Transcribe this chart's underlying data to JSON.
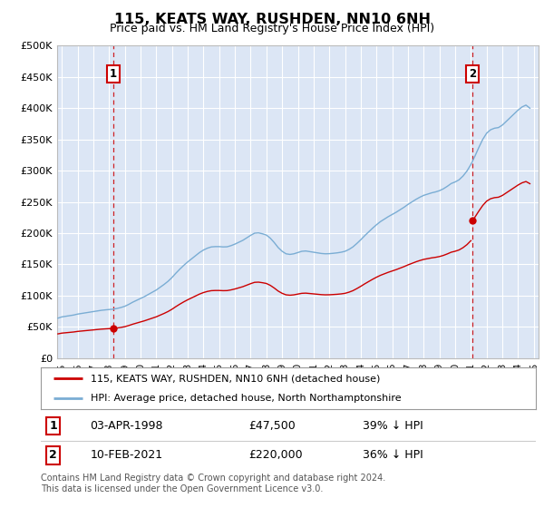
{
  "title": "115, KEATS WAY, RUSHDEN, NN10 6NH",
  "subtitle": "Price paid vs. HM Land Registry's House Price Index (HPI)",
  "ylim": [
    0,
    500000
  ],
  "yticks": [
    0,
    50000,
    100000,
    150000,
    200000,
    250000,
    300000,
    350000,
    400000,
    450000,
    500000
  ],
  "ytick_labels": [
    "£0",
    "£50K",
    "£100K",
    "£150K",
    "£200K",
    "£250K",
    "£300K",
    "£350K",
    "£400K",
    "£450K",
    "£500K"
  ],
  "xlim_start": 1994.7,
  "xlim_end": 2025.3,
  "background_color": "#dce6f5",
  "grid_color": "#ffffff",
  "sale1_year": 1998.25,
  "sale1_price": 47500,
  "sale1_label": "1",
  "sale1_date": "03-APR-1998",
  "sale1_pct": "39% ↓ HPI",
  "sale2_year": 2021.1,
  "sale2_price": 220000,
  "sale2_label": "2",
  "sale2_date": "10-FEB-2021",
  "sale2_pct": "36% ↓ HPI",
  "line1_color": "#cc0000",
  "line2_color": "#7aadd4",
  "vline_color": "#cc0000",
  "marker_box_color": "#cc0000",
  "legend_label1": "115, KEATS WAY, RUSHDEN, NN10 6NH (detached house)",
  "legend_label2": "HPI: Average price, detached house, North Northamptonshire",
  "footer_text": "Contains HM Land Registry data © Crown copyright and database right 2024.\nThis data is licensed under the Open Government Licence v3.0.",
  "hpi_years": [
    1994.75,
    1995.0,
    1995.25,
    1995.5,
    1995.75,
    1996.0,
    1996.25,
    1996.5,
    1996.75,
    1997.0,
    1997.25,
    1997.5,
    1997.75,
    1998.0,
    1998.25,
    1998.5,
    1998.75,
    1999.0,
    1999.25,
    1999.5,
    1999.75,
    2000.0,
    2000.25,
    2000.5,
    2000.75,
    2001.0,
    2001.25,
    2001.5,
    2001.75,
    2002.0,
    2002.25,
    2002.5,
    2002.75,
    2003.0,
    2003.25,
    2003.5,
    2003.75,
    2004.0,
    2004.25,
    2004.5,
    2004.75,
    2005.0,
    2005.25,
    2005.5,
    2005.75,
    2006.0,
    2006.25,
    2006.5,
    2006.75,
    2007.0,
    2007.25,
    2007.5,
    2007.75,
    2008.0,
    2008.25,
    2008.5,
    2008.75,
    2009.0,
    2009.25,
    2009.5,
    2009.75,
    2010.0,
    2010.25,
    2010.5,
    2010.75,
    2011.0,
    2011.25,
    2011.5,
    2011.75,
    2012.0,
    2012.25,
    2012.5,
    2012.75,
    2013.0,
    2013.25,
    2013.5,
    2013.75,
    2014.0,
    2014.25,
    2014.5,
    2014.75,
    2015.0,
    2015.25,
    2015.5,
    2015.75,
    2016.0,
    2016.25,
    2016.5,
    2016.75,
    2017.0,
    2017.25,
    2017.5,
    2017.75,
    2018.0,
    2018.25,
    2018.5,
    2018.75,
    2019.0,
    2019.25,
    2019.5,
    2019.75,
    2020.0,
    2020.25,
    2020.5,
    2020.75,
    2021.0,
    2021.25,
    2021.5,
    2021.75,
    2022.0,
    2022.25,
    2022.5,
    2022.75,
    2023.0,
    2023.25,
    2023.5,
    2023.75,
    2024.0,
    2024.25,
    2024.5,
    2024.75
  ],
  "hpi_values": [
    64000,
    66000,
    67000,
    68000,
    69000,
    70500,
    71500,
    72500,
    73500,
    74500,
    75500,
    76500,
    77200,
    77800,
    78300,
    79500,
    81000,
    83000,
    86000,
    89500,
    92500,
    95500,
    98500,
    102000,
    105500,
    109000,
    113500,
    118000,
    123000,
    129000,
    136000,
    142500,
    148500,
    154000,
    159000,
    164000,
    169000,
    173000,
    176000,
    178000,
    178500,
    178500,
    178000,
    178200,
    180000,
    182500,
    185500,
    188500,
    192500,
    196500,
    200000,
    200500,
    199000,
    197000,
    192000,
    185000,
    177000,
    171000,
    167000,
    166000,
    167000,
    169000,
    171000,
    171500,
    170500,
    169500,
    168500,
    167500,
    167000,
    167200,
    167800,
    168500,
    169500,
    171000,
    174000,
    178000,
    183500,
    189500,
    196000,
    202000,
    208000,
    213500,
    218500,
    222500,
    226500,
    230000,
    233500,
    237500,
    241500,
    246000,
    250000,
    254000,
    257500,
    260500,
    262500,
    264500,
    266000,
    268000,
    271000,
    275000,
    279500,
    282000,
    285500,
    291500,
    299500,
    310000,
    323000,
    337000,
    350000,
    360000,
    365500,
    368000,
    369000,
    373000,
    379000,
    385000,
    391000,
    397000,
    402000,
    405000,
    400000
  ],
  "sold_years": [
    1998.25,
    2021.1
  ],
  "sold_prices": [
    47500,
    220000
  ]
}
